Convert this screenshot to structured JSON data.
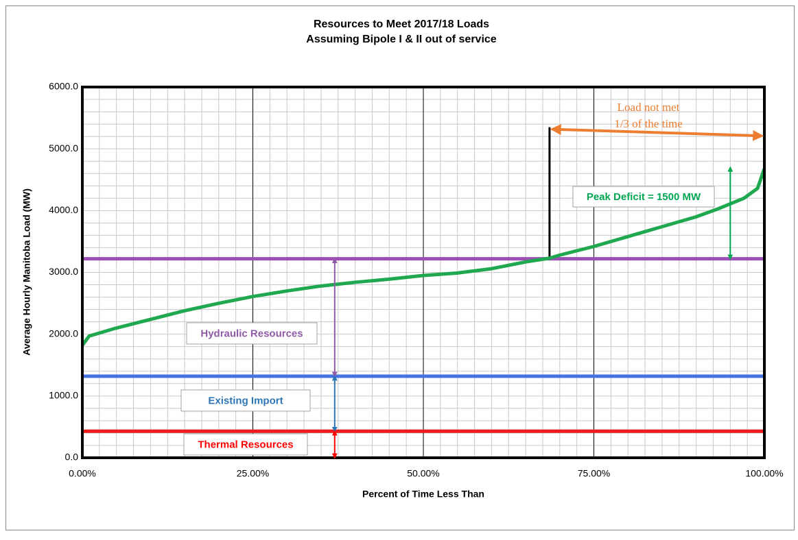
{
  "chart_data": {
    "type": "line",
    "title": "Resources to Meet 2017/18 Loads",
    "subtitle": "Assuming Bipole I & II out of service",
    "x_label": "Percent of Time Less Than",
    "y_label": "Average Hourly Manitoba Load (MW)",
    "xlim": [
      0,
      100
    ],
    "ylim": [
      0,
      6000
    ],
    "xticks": [
      {
        "value": 0,
        "label": "0.00%"
      },
      {
        "value": 25,
        "label": "25.00%"
      },
      {
        "value": 50,
        "label": "50.00%"
      },
      {
        "value": 75,
        "label": "75.00%"
      },
      {
        "value": 100,
        "label": "100.00%"
      }
    ],
    "yticks": [
      {
        "value": 0,
        "label": "0.0"
      },
      {
        "value": 1000,
        "label": "1000.0"
      },
      {
        "value": 2000,
        "label": "2000.0"
      },
      {
        "value": 3000,
        "label": "3000.0"
      },
      {
        "value": 4000,
        "label": "4000.0"
      },
      {
        "value": 5000,
        "label": "5000.0"
      },
      {
        "value": 6000,
        "label": "6000.0"
      }
    ],
    "grid": true,
    "series": [
      {
        "color": "#1fa84f",
        "x": [
          0,
          1,
          5,
          10,
          15,
          20,
          25,
          30,
          35,
          40,
          45,
          50,
          55,
          60,
          65,
          68.5,
          70,
          75,
          80,
          85,
          90,
          93,
          97,
          99,
          100
        ],
        "values": [
          1820,
          1970,
          2100,
          2240,
          2380,
          2500,
          2610,
          2700,
          2780,
          2840,
          2890,
          2950,
          2990,
          3060,
          3170,
          3230,
          3280,
          3420,
          3580,
          3740,
          3900,
          4020,
          4200,
          4360,
          4680
        ]
      }
    ],
    "levels": [
      {
        "value": 3220,
        "color": "#9b4fb5"
      },
      {
        "value": 1320,
        "color": "#4472e0"
      },
      {
        "value": 430,
        "color": "#ee1c1c"
      }
    ],
    "marker_line": {
      "x": 68.5,
      "from": 3230,
      "to": 5350,
      "color": "#000000"
    },
    "annotations": [
      {
        "text": "Peak Deficit = 1500 MW",
        "color": "#00a651",
        "x": 95,
        "from": 3220,
        "to": 4700
      },
      {
        "text": "Hydraulic Resources",
        "color": "#8e5aa6",
        "x": 37,
        "from": 3220,
        "to": 1320
      },
      {
        "text": "Existing Import",
        "color": "#2e75b6",
        "x": 37,
        "from": 1320,
        "to": 430
      },
      {
        "text": "Thermal  Resources",
        "color": "#ff0000",
        "x": 37,
        "from": 430,
        "to": 0
      }
    ],
    "span_arrow": {
      "texts": [
        "Load not met",
        "1/3 of the time"
      ],
      "color": "#ed7d31",
      "x": [
        68.5,
        100
      ],
      "y": [
        5350,
        5210
      ]
    }
  }
}
